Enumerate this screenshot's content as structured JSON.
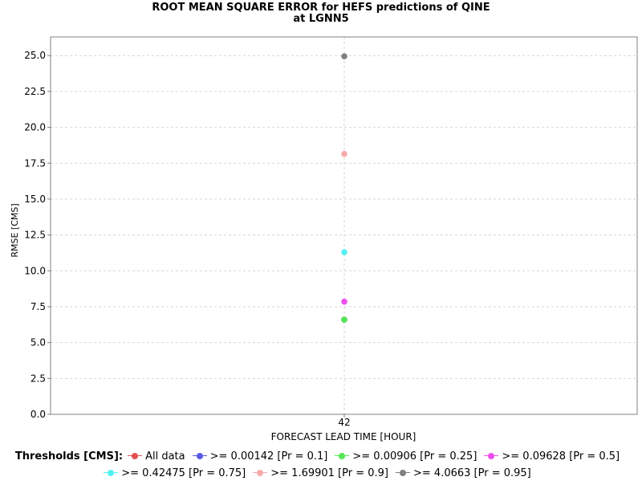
{
  "chart_data": {
    "type": "scatter",
    "title": "ROOT MEAN SQUARE ERROR for HEFS predictions of QINE",
    "subtitle": "at LGNN5",
    "xlabel": "FORECAST LEAD TIME [HOUR]",
    "ylabel": "RMSE [CMS]",
    "categories": [
      "42"
    ],
    "ylim": [
      0,
      26.3
    ],
    "yticks": [
      "0.0",
      "2.5",
      "5.0",
      "7.5",
      "10.0",
      "12.5",
      "15.0",
      "17.5",
      "20.0",
      "22.5",
      "25.0"
    ],
    "grid": true,
    "legend_title": "Thresholds [CMS]:",
    "legend_position": "bottom",
    "series": [
      {
        "name": "All data",
        "color": "#e0524f",
        "values": [
          6.6
        ]
      },
      {
        "name": ">= 0.00142 [Pr = 0.1]",
        "color": "#5a5ae6",
        "values": [
          6.6
        ]
      },
      {
        "name": ">= 0.00906 [Pr = 0.25]",
        "color": "#55e655",
        "values": [
          6.6
        ]
      },
      {
        "name": ">= 0.09628 [Pr = 0.5]",
        "color": "#ef4fef",
        "values": [
          7.85
        ]
      },
      {
        "name": ">= 0.42475 [Pr = 0.75]",
        "color": "#55f0f0",
        "values": [
          11.3
        ]
      },
      {
        "name": ">= 1.69901 [Pr = 0.9]",
        "color": "#f6aaaa",
        "values": [
          18.15
        ]
      },
      {
        "name": ">= 4.0663 [Pr = 0.95]",
        "color": "#808080",
        "values": [
          24.95
        ]
      }
    ]
  }
}
